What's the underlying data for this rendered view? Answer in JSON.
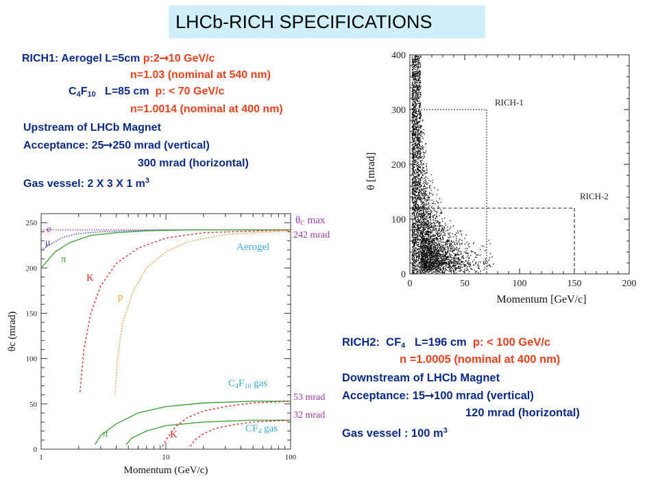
{
  "title": "LHCb-RICH SPECIFICATIONS",
  "rich1": {
    "line1_label": "RICH1: Aerogel  L=5cm  ",
    "line1_p_prefix": "p:2",
    "line1_p_suffix": "10 GeV/c",
    "line2": "n=1.03 (nominal at 540 nm)",
    "line3_c": "C",
    "line3_sub1": "4",
    "line3_f": "F",
    "line3_sub2": "10",
    "line3_rest": "   L=85 cm  ",
    "line3_p": "p: < 70 GeV/c",
    "line4": "n=1.0014 (nominal at  400 nm)",
    "line5": "Upstream of LHCb Magnet",
    "line6_prefix": "Acceptance: 25",
    "line6_suffix": "250 mrad (vertical)",
    "line7": "300 mrad (horizontal)",
    "line8_prefix": "Gas vessel: 2 X 3 X 1  m",
    "line8_sup": "3"
  },
  "rich2": {
    "line1_prefix": "RICH2:  CF",
    "line1_sub": "4",
    "line1_mid": "   L=196 cm  ",
    "line1_p": "p: < 100 GeV/c",
    "line2": "n =1.0005 (nominal at 400 nm)",
    "line3": "Downstream of  LHCb Magnet",
    "line4_prefix": "Acceptance: 15",
    "line4_suffix": "100 mrad (vertical)",
    "line5": "120 mrad (horizontal)",
    "line6_prefix": "Gas vessel : 100 m",
    "line6_sup": "3"
  },
  "colors": {
    "title_bg": "#cff0f8",
    "text_blue": "#0b2a86",
    "text_red": "#e8401c",
    "curve_green": "#3aa53a",
    "curve_red": "#e0282a",
    "curve_orange": "#f0a040",
    "curve_purple": "#9b3aa8",
    "label_cyan": "#3aaed0"
  },
  "chart_data": [
    {
      "type": "line",
      "xlabel": "Momentum  (GeV/c)",
      "ylabel": "θc  (mrad)",
      "x_scale": "log",
      "xlim": [
        1,
        100
      ],
      "ylim": [
        0,
        260
      ],
      "x_ticks": [
        "1",
        "10",
        "100"
      ],
      "y_ticks": [
        "0",
        "50",
        "100",
        "150",
        "200",
        "250"
      ],
      "annotations": {
        "theta_max": "θC max",
        "mrad_242": "242 mrad",
        "mrad_53": "53 mrad",
        "mrad_32": "32 mrad",
        "aerogel": "Aerogel",
        "c4f10": "C4F10 gas",
        "cf4": "CF4 gas"
      },
      "series": [
        {
          "name": "e",
          "radiator": "Aerogel",
          "x": [
            1,
            2,
            5,
            10,
            100
          ],
          "y": [
            242,
            242,
            242,
            242,
            242
          ]
        },
        {
          "name": "μ",
          "radiator": "Aerogel",
          "x": [
            1,
            1.5,
            2,
            3,
            5,
            10,
            100
          ],
          "y": [
            220,
            234,
            238,
            240,
            241,
            242,
            242
          ]
        },
        {
          "name": "π",
          "radiator": "Aerogel",
          "x": [
            1,
            1.3,
            1.7,
            2.5,
            4,
            7,
            15,
            100
          ],
          "y": [
            200,
            218,
            228,
            236,
            239,
            241,
            242,
            242
          ]
        },
        {
          "name": "K",
          "radiator": "Aerogel",
          "x": [
            2.05,
            2.2,
            2.5,
            3,
            4,
            6,
            10,
            20,
            100
          ],
          "y": [
            63,
            110,
            150,
            180,
            205,
            222,
            233,
            239,
            242
          ]
        },
        {
          "name": "p",
          "radiator": "Aerogel",
          "x": [
            3.9,
            4.1,
            4.5,
            5.5,
            7,
            10,
            15,
            30,
            100
          ],
          "y": [
            60,
            100,
            140,
            175,
            200,
            218,
            229,
            237,
            241
          ]
        },
        {
          "name": "π",
          "radiator": "C4F10 gas",
          "x": [
            2.7,
            3,
            4,
            6,
            10,
            20,
            50,
            100
          ],
          "y": [
            5,
            15,
            28,
            40,
            47,
            51,
            53,
            53
          ]
        },
        {
          "name": "π",
          "radiator": "CF4 gas",
          "x": [
            4.8,
            5.3,
            7,
            10,
            20,
            50,
            100
          ],
          "y": [
            5,
            12,
            20,
            26,
            30,
            32,
            32
          ]
        },
        {
          "name": "K",
          "radiator": "C4F10 gas",
          "x": [
            9.4,
            10,
            12,
            15,
            20,
            30,
            50,
            100
          ],
          "y": [
            3,
            10,
            25,
            35,
            42,
            47,
            51,
            53
          ]
        },
        {
          "name": "K",
          "radiator": "CF4 gas",
          "x": [
            15.7,
            17,
            20,
            25,
            35,
            50,
            100
          ],
          "y": [
            3,
            10,
            17,
            23,
            27,
            30,
            32
          ]
        }
      ],
      "series_labels": {
        "e": "e",
        "mu": "μ",
        "pi_aerogel": "π",
        "k_aerogel": "K",
        "p_aerogel": "p",
        "pi_gas": "π",
        "k_gas": "K"
      }
    },
    {
      "type": "scatter",
      "xlabel": "Momentum  [GeV/c]",
      "ylabel": "θ  [mrad]",
      "xlim": [
        0,
        200
      ],
      "ylim": [
        0,
        400
      ],
      "x_ticks": [
        "0",
        "50",
        "100",
        "150",
        "200"
      ],
      "y_ticks": [
        "0",
        "100",
        "200",
        "300",
        "400"
      ],
      "regions": [
        {
          "name": "RICH-1",
          "x": [
            0,
            70
          ],
          "y": [
            0,
            300
          ]
        },
        {
          "name": "RICH-2",
          "x": [
            0,
            150
          ],
          "y": [
            0,
            120
          ]
        }
      ]
    }
  ]
}
